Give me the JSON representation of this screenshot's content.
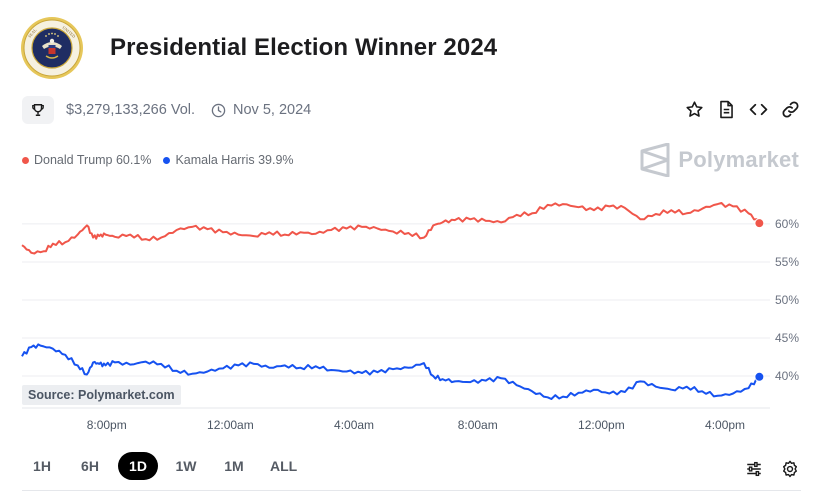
{
  "header": {
    "title": "Presidential Election Winner 2024",
    "seal_text": "SEAL OF THE PRESIDENT OF THE UNITED STATES"
  },
  "meta": {
    "volume": "$3,279,133,266 Vol.",
    "date": "Nov 5, 2024"
  },
  "legend": {
    "items": [
      {
        "label": "Donald Trump 60.1%",
        "color": "#f0564a"
      },
      {
        "label": "Kamala Harris 39.9%",
        "color": "#1652f0"
      }
    ]
  },
  "brand": {
    "name": "Polymarket"
  },
  "source": "Source: Polymarket.com",
  "ranges": {
    "items": [
      "1H",
      "6H",
      "1D",
      "1W",
      "1M",
      "ALL"
    ],
    "active": "1D"
  },
  "chart_data": {
    "type": "line",
    "x_ticks": [
      "8:00pm",
      "12:00am",
      "4:00am",
      "8:00am",
      "12:00pm",
      "4:00pm"
    ],
    "y_ticks": [
      "60%",
      "55%",
      "50%",
      "45%",
      "40%"
    ],
    "ylim": [
      35.8,
      63.8
    ],
    "xlim": [
      0,
      24
    ],
    "series": [
      {
        "name": "Donald Trump",
        "color": "#f0564a",
        "x": [
          0,
          0.3,
          0.7,
          1.0,
          1.4,
          1.8,
          2.1,
          2.3,
          2.5,
          2.7,
          3.0,
          3.5,
          4.0,
          4.5,
          5.0,
          5.5,
          6.0,
          6.5,
          7.0,
          7.5,
          8.0,
          8.5,
          9.0,
          9.5,
          10.0,
          10.5,
          11.0,
          11.5,
          12.0,
          12.5,
          13.0,
          13.3,
          13.6,
          14.0,
          14.5,
          15.0,
          15.5,
          16.0,
          16.5,
          17.0,
          17.5,
          18.0,
          18.5,
          19.0,
          19.5,
          20.0,
          20.5,
          21.0,
          21.5,
          22.0,
          22.5,
          23.0,
          23.5,
          23.85
        ],
        "values": [
          57.2,
          56.2,
          56.4,
          57.4,
          57.6,
          58.6,
          59.8,
          58.2,
          58.4,
          58.6,
          58.3,
          58.6,
          58.0,
          58.2,
          59.2,
          59.6,
          59.3,
          58.9,
          58.6,
          58.4,
          58.9,
          58.6,
          58.9,
          58.7,
          59.2,
          59.4,
          59.6,
          59.4,
          59.0,
          58.8,
          58.2,
          59.8,
          60.2,
          60.5,
          60.6,
          60.4,
          60.2,
          61.2,
          61.4,
          62.5,
          62.6,
          62.2,
          61.8,
          62.3,
          62.1,
          60.6,
          61.3,
          61.8,
          61.4,
          62.0,
          62.6,
          62.3,
          61.4,
          60.1
        ]
      },
      {
        "name": "Kamala Harris",
        "color": "#1652f0",
        "x": [
          0,
          0.3,
          0.6,
          1.0,
          1.4,
          1.8,
          2.1,
          2.3,
          2.5,
          2.7,
          3.0,
          3.5,
          4.0,
          4.5,
          5.0,
          5.5,
          6.0,
          6.5,
          7.0,
          7.5,
          8.0,
          8.5,
          9.0,
          9.5,
          10.0,
          10.5,
          11.0,
          11.5,
          12.0,
          12.5,
          13.0,
          13.3,
          13.6,
          14.0,
          14.5,
          15.0,
          15.5,
          16.0,
          16.5,
          17.0,
          17.5,
          18.0,
          18.5,
          19.0,
          19.5,
          20.0,
          20.5,
          21.0,
          21.5,
          22.0,
          22.5,
          23.0,
          23.5,
          23.85
        ],
        "values": [
          42.6,
          43.8,
          44.0,
          43.6,
          42.8,
          41.4,
          40.2,
          41.8,
          41.6,
          41.4,
          41.8,
          41.5,
          41.9,
          41.6,
          40.7,
          40.3,
          40.6,
          41.0,
          41.4,
          41.6,
          41.1,
          41.4,
          41.1,
          41.3,
          40.8,
          40.6,
          40.4,
          40.5,
          40.9,
          41.1,
          41.7,
          40.0,
          39.6,
          39.3,
          39.2,
          39.4,
          39.7,
          38.8,
          38.0,
          37.2,
          37.3,
          37.8,
          38.2,
          37.7,
          37.9,
          39.3,
          38.6,
          38.2,
          38.6,
          38.0,
          37.4,
          37.7,
          38.4,
          39.9
        ]
      }
    ]
  }
}
